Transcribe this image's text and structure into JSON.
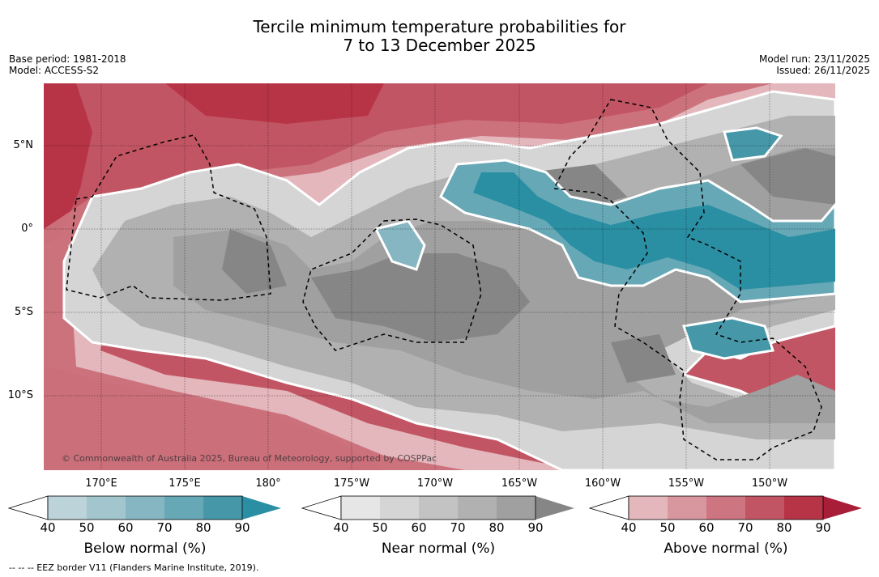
{
  "title_line1": "Tercile minimum temperature probabilities for",
  "title_line2": "7 to 13 December 2025",
  "base_period": "Base period: 1981-2018",
  "model": "Model: ACCESS-S2",
  "model_run": "Model run: 23/11/2025",
  "issued": "Issued: 26/11/2025",
  "copyright": "© Commonwealth of Australia 2025, Bureau of Meteorology, supported by COSPPac",
  "lat_labels": [
    "5°N",
    "0°",
    "5°S",
    "10°S"
  ],
  "lon_labels": [
    "170°E",
    "175°E",
    "180°",
    "175°W",
    "170°W",
    "165°W",
    "160°W",
    "155°W",
    "150°W"
  ],
  "colorbars": [
    {
      "title": "Below normal (%)",
      "ticks": [
        "40",
        "50",
        "60",
        "70",
        "80",
        "90"
      ],
      "colors": [
        "#ffffff",
        "#bcd3da",
        "#a3c6ce",
        "#85b6c1",
        "#66a8b6",
        "#4698a9",
        "#2a8fa3"
      ]
    },
    {
      "title": "Near normal (%)",
      "ticks": [
        "40",
        "50",
        "60",
        "70",
        "80",
        "90"
      ],
      "colors": [
        "#ffffff",
        "#e6e6e6",
        "#d5d5d5",
        "#c3c3c3",
        "#b1b1b1",
        "#a0a0a0",
        "#868686"
      ]
    },
    {
      "title": "Above normal (%)",
      "ticks": [
        "40",
        "50",
        "60",
        "70",
        "80",
        "90"
      ],
      "colors": [
        "#ffffff",
        "#e4b7bd",
        "#d8969f",
        "#cd7580",
        "#c25563",
        "#b73446",
        "#a81d37"
      ]
    }
  ],
  "footer": "--  --  -- EEZ border V11 (Flanders Marine Institute, 2019).",
  "colors": {
    "below": "#2a8fa3",
    "near": "#868686",
    "above": "#b73446"
  }
}
